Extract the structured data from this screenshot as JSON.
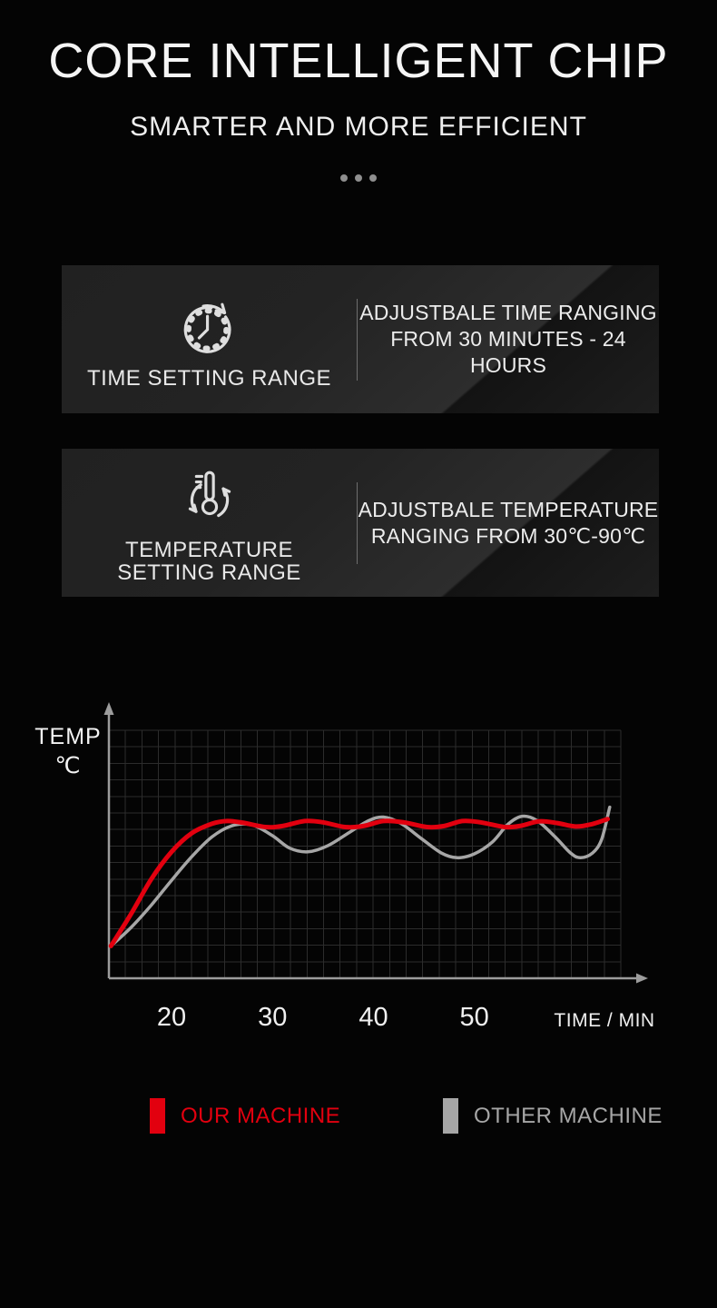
{
  "header": {
    "title": "CORE INTELLIGENT CHIP",
    "subtitle": "SMARTER AND MORE EFFICIENT"
  },
  "features": [
    {
      "icon": "clock-cycle-icon",
      "label_line_1": "TIME SETTING RANGE",
      "label_line_2": "",
      "desc_line_1": "ADJUSTBALE TIME RANGING",
      "desc_line_2": "FROM 30 MINUTES - 24 HOURS"
    },
    {
      "icon": "thermometer-cycle-icon",
      "label_line_1": "TEMPERATURE",
      "label_line_2": "SETTING RANGE",
      "desc_line_1": "ADJUSTBALE TEMPERATURE",
      "desc_line_2": "RANGING FROM 30℃-90℃"
    }
  ],
  "chart_data": {
    "type": "line",
    "title": "",
    "ylabel_line_1": "TEMP",
    "ylabel_line_2": "℃",
    "xlabel": "TIME / MIN",
    "x_tick_labels": [
      "20",
      "30",
      "40",
      "50"
    ],
    "x_tick_values": [
      20,
      30,
      40,
      50
    ],
    "x_range": [
      13.8,
      64.5
    ],
    "y_range": [
      0,
      100
    ],
    "grid": {
      "cols": 31,
      "rows": 15,
      "color": "#2c2c2c",
      "on": true
    },
    "axis_color": "#9c9c9c",
    "legend_position": "bottom",
    "series": [
      {
        "name": "OUR MACHINE",
        "color": "#e2000f",
        "points": [
          [
            14,
            13
          ],
          [
            16,
            26
          ],
          [
            18,
            40
          ],
          [
            20,
            51
          ],
          [
            22,
            58.5
          ],
          [
            24,
            62.3
          ],
          [
            25.5,
            63.4
          ],
          [
            27,
            62.8
          ],
          [
            29.3,
            61.0
          ],
          [
            31,
            61.4
          ],
          [
            33.2,
            63.4
          ],
          [
            35,
            62.9
          ],
          [
            37.2,
            61.0
          ],
          [
            39,
            61.4
          ],
          [
            41,
            63.4
          ],
          [
            43,
            62.9
          ],
          [
            45.3,
            61.0
          ],
          [
            47,
            61.4
          ],
          [
            48.8,
            63.4
          ],
          [
            50.6,
            62.9
          ],
          [
            53,
            61.0
          ],
          [
            54.6,
            61.5
          ],
          [
            56.4,
            63.3
          ],
          [
            58.2,
            62.6
          ],
          [
            60,
            61.2
          ],
          [
            61.5,
            62.0
          ],
          [
            63.2,
            64.2
          ]
        ]
      },
      {
        "name": "OTHER MACHINE",
        "color": "#a6a6a6",
        "points": [
          [
            14,
            13
          ],
          [
            16,
            20.5
          ],
          [
            18,
            29.5
          ],
          [
            20,
            39.5
          ],
          [
            22,
            49
          ],
          [
            24,
            57
          ],
          [
            26,
            61.5
          ],
          [
            28,
            61.8
          ],
          [
            30,
            57.5
          ],
          [
            31.7,
            52.5
          ],
          [
            33.5,
            51
          ],
          [
            35.5,
            53.5
          ],
          [
            37.5,
            58.5
          ],
          [
            39.5,
            63.5
          ],
          [
            41,
            65
          ],
          [
            42.7,
            62.5
          ],
          [
            44.7,
            56.5
          ],
          [
            46.7,
            50.6
          ],
          [
            48.3,
            48.6
          ],
          [
            50,
            50.2
          ],
          [
            51.8,
            55
          ],
          [
            53.3,
            62
          ],
          [
            54.7,
            65.3
          ],
          [
            56.2,
            63.6
          ],
          [
            58,
            57
          ],
          [
            59.5,
            50.6
          ],
          [
            60.5,
            48.6
          ],
          [
            61.7,
            50.5
          ],
          [
            62.6,
            56
          ],
          [
            63.4,
            69
          ]
        ]
      }
    ]
  }
}
